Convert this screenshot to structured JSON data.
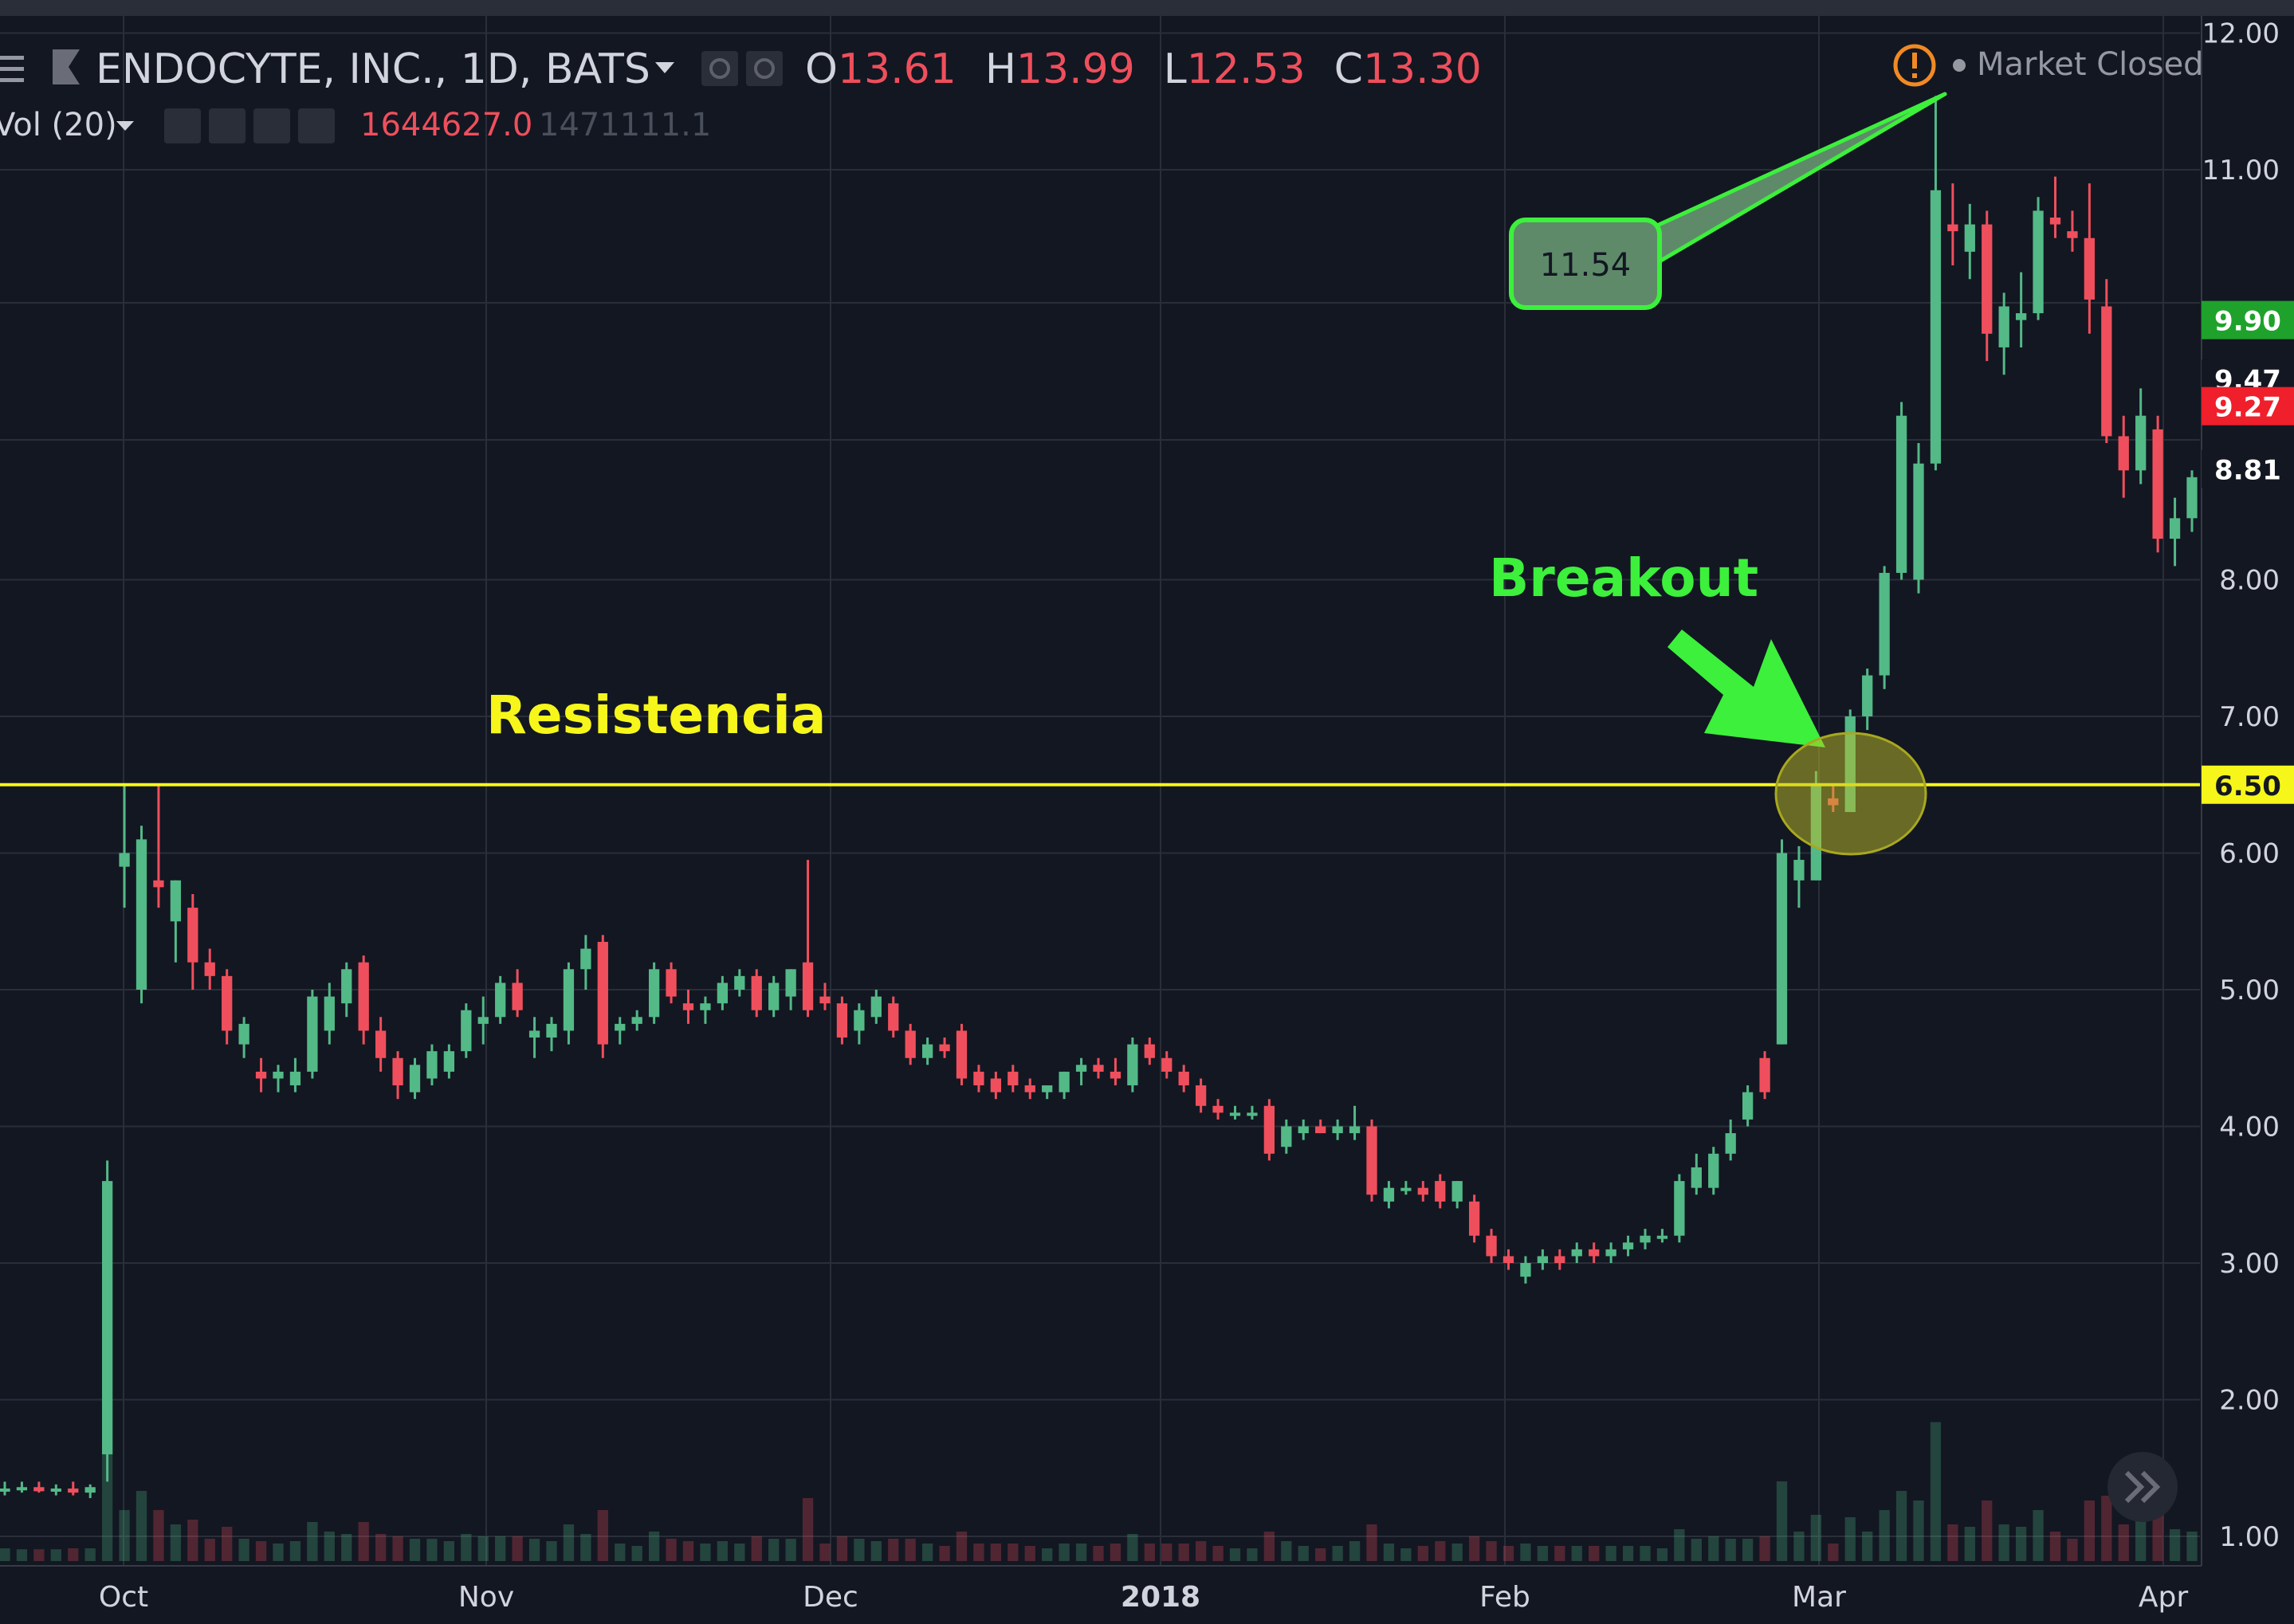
{
  "header": {
    "symbol": "ENDOCYTE, INC., 1D, BATS",
    "ohlc": {
      "o_label": "O",
      "o": "13.61",
      "h_label": "H",
      "h": "13.99",
      "l_label": "L",
      "l": "12.53",
      "c_label": "C",
      "c": "13.30"
    },
    "volume_label": "Vol (20)",
    "volume_value": "1644627.0",
    "volume_ma": "1471111.1",
    "status": "Market Closed"
  },
  "colors": {
    "up": "#53b987",
    "down": "#ef4f5c",
    "background": "#131722",
    "grid": "#2a2e39",
    "resistance": "#f6f61b",
    "annotation": "#3cf03c"
  },
  "annotations": {
    "resistance_text": "Resistencia",
    "breakout_text": "Breakout",
    "callout_value": "11.54"
  },
  "price_badges": [
    {
      "label": "9.90",
      "value": 9.9,
      "bg": "#1fa22b",
      "fg": "#ffffff"
    },
    {
      "label": "9.47",
      "value": 9.47,
      "bg": "#131722",
      "fg": "#ffffff"
    },
    {
      "label": "9.27",
      "value": 9.27,
      "bg": "#ef1f2b",
      "fg": "#ffffff"
    },
    {
      "label": "8.81",
      "value": 8.81,
      "bg": "#131722",
      "fg": "#ffffff"
    },
    {
      "label": "6.50",
      "value": 6.5,
      "bg": "#f6f61b",
      "fg": "#131722"
    }
  ],
  "chart_data": {
    "type": "candlestick",
    "y_ticks": [
      "1.00",
      "2.00",
      "3.00",
      "4.00",
      "5.00",
      "6.00",
      "7.00",
      "8.00",
      "11.00",
      "12.00"
    ],
    "ylim": [
      0.9,
      12.2
    ],
    "x_ticks": [
      "Oct",
      "Nov",
      "Dec",
      "2018",
      "Feb",
      "Mar",
      "Apr"
    ],
    "resistance_level": 6.5,
    "candles": [
      {
        "o": 1.35,
        "h": 1.4,
        "l": 1.3,
        "c": 1.35
      },
      {
        "o": 1.35,
        "h": 1.4,
        "l": 1.32,
        "c": 1.36
      },
      {
        "o": 1.36,
        "h": 1.4,
        "l": 1.32,
        "c": 1.33
      },
      {
        "o": 1.33,
        "h": 1.38,
        "l": 1.3,
        "c": 1.35
      },
      {
        "o": 1.35,
        "h": 1.4,
        "l": 1.3,
        "c": 1.32
      },
      {
        "o": 1.32,
        "h": 1.38,
        "l": 1.28,
        "c": 1.36
      },
      {
        "o": 1.6,
        "h": 3.75,
        "l": 1.4,
        "c": 3.6
      },
      {
        "o": 5.9,
        "h": 6.5,
        "l": 5.6,
        "c": 6.0
      },
      {
        "o": 5.0,
        "h": 6.2,
        "l": 4.9,
        "c": 6.1
      },
      {
        "o": 5.8,
        "h": 6.5,
        "l": 5.6,
        "c": 5.75
      },
      {
        "o": 5.5,
        "h": 5.8,
        "l": 5.2,
        "c": 5.8
      },
      {
        "o": 5.6,
        "h": 5.7,
        "l": 5.0,
        "c": 5.2
      },
      {
        "o": 5.2,
        "h": 5.3,
        "l": 5.0,
        "c": 5.1
      },
      {
        "o": 5.1,
        "h": 5.15,
        "l": 4.6,
        "c": 4.7
      },
      {
        "o": 4.6,
        "h": 4.8,
        "l": 4.5,
        "c": 4.75
      },
      {
        "o": 4.4,
        "h": 4.5,
        "l": 4.25,
        "c": 4.35
      },
      {
        "o": 4.35,
        "h": 4.45,
        "l": 4.25,
        "c": 4.4
      },
      {
        "o": 4.3,
        "h": 4.5,
        "l": 4.25,
        "c": 4.4
      },
      {
        "o": 4.4,
        "h": 5.0,
        "l": 4.35,
        "c": 4.95
      },
      {
        "o": 4.7,
        "h": 5.05,
        "l": 4.6,
        "c": 4.95
      },
      {
        "o": 4.9,
        "h": 5.2,
        "l": 4.8,
        "c": 5.15
      },
      {
        "o": 5.2,
        "h": 5.25,
        "l": 4.6,
        "c": 4.7
      },
      {
        "o": 4.7,
        "h": 4.8,
        "l": 4.4,
        "c": 4.5
      },
      {
        "o": 4.5,
        "h": 4.55,
        "l": 4.2,
        "c": 4.3
      },
      {
        "o": 4.25,
        "h": 4.5,
        "l": 4.2,
        "c": 4.45
      },
      {
        "o": 4.35,
        "h": 4.6,
        "l": 4.3,
        "c": 4.55
      },
      {
        "o": 4.4,
        "h": 4.6,
        "l": 4.35,
        "c": 4.55
      },
      {
        "o": 4.55,
        "h": 4.9,
        "l": 4.5,
        "c": 4.85
      },
      {
        "o": 4.75,
        "h": 4.95,
        "l": 4.6,
        "c": 4.8
      },
      {
        "o": 4.8,
        "h": 5.1,
        "l": 4.75,
        "c": 5.05
      },
      {
        "o": 5.05,
        "h": 5.15,
        "l": 4.8,
        "c": 4.85
      },
      {
        "o": 4.65,
        "h": 4.8,
        "l": 4.5,
        "c": 4.7
      },
      {
        "o": 4.65,
        "h": 4.8,
        "l": 4.55,
        "c": 4.75
      },
      {
        "o": 4.7,
        "h": 5.2,
        "l": 4.6,
        "c": 5.15
      },
      {
        "o": 5.15,
        "h": 5.4,
        "l": 5.0,
        "c": 5.3
      },
      {
        "o": 5.35,
        "h": 5.4,
        "l": 4.5,
        "c": 4.6
      },
      {
        "o": 4.7,
        "h": 4.8,
        "l": 4.6,
        "c": 4.75
      },
      {
        "o": 4.75,
        "h": 4.85,
        "l": 4.7,
        "c": 4.8
      },
      {
        "o": 4.8,
        "h": 5.2,
        "l": 4.75,
        "c": 5.15
      },
      {
        "o": 5.15,
        "h": 5.2,
        "l": 4.9,
        "c": 4.95
      },
      {
        "o": 4.9,
        "h": 5.0,
        "l": 4.75,
        "c": 4.85
      },
      {
        "o": 4.85,
        "h": 4.95,
        "l": 4.75,
        "c": 4.9
      },
      {
        "o": 4.9,
        "h": 5.1,
        "l": 4.85,
        "c": 5.05
      },
      {
        "o": 5.0,
        "h": 5.15,
        "l": 4.95,
        "c": 5.1
      },
      {
        "o": 5.1,
        "h": 5.15,
        "l": 4.8,
        "c": 4.85
      },
      {
        "o": 4.85,
        "h": 5.1,
        "l": 4.8,
        "c": 5.05
      },
      {
        "o": 4.95,
        "h": 5.15,
        "l": 4.85,
        "c": 5.15
      },
      {
        "o": 5.2,
        "h": 5.95,
        "l": 4.8,
        "c": 4.85
      },
      {
        "o": 4.95,
        "h": 5.05,
        "l": 4.85,
        "c": 4.9
      },
      {
        "o": 4.9,
        "h": 4.95,
        "l": 4.6,
        "c": 4.65
      },
      {
        "o": 4.7,
        "h": 4.9,
        "l": 4.6,
        "c": 4.85
      },
      {
        "o": 4.8,
        "h": 5.0,
        "l": 4.75,
        "c": 4.95
      },
      {
        "o": 4.9,
        "h": 4.95,
        "l": 4.65,
        "c": 4.7
      },
      {
        "o": 4.7,
        "h": 4.75,
        "l": 4.45,
        "c": 4.5
      },
      {
        "o": 4.5,
        "h": 4.65,
        "l": 4.45,
        "c": 4.6
      },
      {
        "o": 4.6,
        "h": 4.65,
        "l": 4.5,
        "c": 4.55
      },
      {
        "o": 4.7,
        "h": 4.75,
        "l": 4.3,
        "c": 4.35
      },
      {
        "o": 4.4,
        "h": 4.45,
        "l": 4.25,
        "c": 4.3
      },
      {
        "o": 4.35,
        "h": 4.4,
        "l": 4.2,
        "c": 4.25
      },
      {
        "o": 4.4,
        "h": 4.45,
        "l": 4.25,
        "c": 4.3
      },
      {
        "o": 4.3,
        "h": 4.35,
        "l": 4.2,
        "c": 4.25
      },
      {
        "o": 4.25,
        "h": 4.3,
        "l": 4.2,
        "c": 4.3
      },
      {
        "o": 4.25,
        "h": 4.4,
        "l": 4.2,
        "c": 4.4
      },
      {
        "o": 4.4,
        "h": 4.5,
        "l": 4.3,
        "c": 4.45
      },
      {
        "o": 4.45,
        "h": 4.5,
        "l": 4.35,
        "c": 4.4
      },
      {
        "o": 4.4,
        "h": 4.5,
        "l": 4.3,
        "c": 4.35
      },
      {
        "o": 4.3,
        "h": 4.65,
        "l": 4.25,
        "c": 4.6
      },
      {
        "o": 4.6,
        "h": 4.65,
        "l": 4.45,
        "c": 4.5
      },
      {
        "o": 4.5,
        "h": 4.55,
        "l": 4.35,
        "c": 4.4
      },
      {
        "o": 4.4,
        "h": 4.45,
        "l": 4.25,
        "c": 4.3
      },
      {
        "o": 4.3,
        "h": 4.35,
        "l": 4.1,
        "c": 4.15
      },
      {
        "o": 4.15,
        "h": 4.2,
        "l": 4.05,
        "c": 4.1
      },
      {
        "o": 4.1,
        "h": 4.15,
        "l": 4.05,
        "c": 4.1
      },
      {
        "o": 4.1,
        "h": 4.15,
        "l": 4.05,
        "c": 4.1
      },
      {
        "o": 4.15,
        "h": 4.2,
        "l": 3.75,
        "c": 3.8
      },
      {
        "o": 3.85,
        "h": 4.05,
        "l": 3.8,
        "c": 4.0
      },
      {
        "o": 3.95,
        "h": 4.05,
        "l": 3.9,
        "c": 4.0
      },
      {
        "o": 4.0,
        "h": 4.05,
        "l": 3.95,
        "c": 3.95
      },
      {
        "o": 3.95,
        "h": 4.05,
        "l": 3.9,
        "c": 4.0
      },
      {
        "o": 3.95,
        "h": 4.15,
        "l": 3.9,
        "c": 4.0
      },
      {
        "o": 4.0,
        "h": 4.05,
        "l": 3.45,
        "c": 3.5
      },
      {
        "o": 3.45,
        "h": 3.6,
        "l": 3.4,
        "c": 3.55
      },
      {
        "o": 3.55,
        "h": 3.6,
        "l": 3.5,
        "c": 3.55
      },
      {
        "o": 3.55,
        "h": 3.6,
        "l": 3.45,
        "c": 3.5
      },
      {
        "o": 3.6,
        "h": 3.65,
        "l": 3.4,
        "c": 3.45
      },
      {
        "o": 3.45,
        "h": 3.6,
        "l": 3.4,
        "c": 3.6
      },
      {
        "o": 3.45,
        "h": 3.5,
        "l": 3.15,
        "c": 3.2
      },
      {
        "o": 3.2,
        "h": 3.25,
        "l": 3.0,
        "c": 3.05
      },
      {
        "o": 3.05,
        "h": 3.1,
        "l": 2.95,
        "c": 3.0
      },
      {
        "o": 2.9,
        "h": 3.05,
        "l": 2.85,
        "c": 3.0
      },
      {
        "o": 3.0,
        "h": 3.1,
        "l": 2.95,
        "c": 3.05
      },
      {
        "o": 3.05,
        "h": 3.1,
        "l": 2.95,
        "c": 3.0
      },
      {
        "o": 3.05,
        "h": 3.15,
        "l": 3.0,
        "c": 3.1
      },
      {
        "o": 3.1,
        "h": 3.15,
        "l": 3.0,
        "c": 3.05
      },
      {
        "o": 3.05,
        "h": 3.15,
        "l": 3.0,
        "c": 3.1
      },
      {
        "o": 3.1,
        "h": 3.2,
        "l": 3.05,
        "c": 3.15
      },
      {
        "o": 3.15,
        "h": 3.25,
        "l": 3.1,
        "c": 3.2
      },
      {
        "o": 3.2,
        "h": 3.25,
        "l": 3.15,
        "c": 3.2
      },
      {
        "o": 3.2,
        "h": 3.65,
        "l": 3.15,
        "c": 3.6
      },
      {
        "o": 3.55,
        "h": 3.8,
        "l": 3.5,
        "c": 3.7
      },
      {
        "o": 3.55,
        "h": 3.85,
        "l": 3.5,
        "c": 3.8
      },
      {
        "o": 3.8,
        "h": 4.05,
        "l": 3.75,
        "c": 3.95
      },
      {
        "o": 4.05,
        "h": 4.3,
        "l": 4.0,
        "c": 4.25
      },
      {
        "o": 4.5,
        "h": 4.55,
        "l": 4.2,
        "c": 4.25
      },
      {
        "o": 4.6,
        "h": 6.1,
        "l": 4.6,
        "c": 6.0
      },
      {
        "o": 5.8,
        "h": 6.05,
        "l": 5.6,
        "c": 5.95
      },
      {
        "o": 5.8,
        "h": 6.6,
        "l": 5.8,
        "c": 6.5
      },
      {
        "o": 6.4,
        "h": 6.5,
        "l": 6.3,
        "c": 6.35
      },
      {
        "o": 6.3,
        "h": 7.05,
        "l": 6.3,
        "c": 7.0
      },
      {
        "o": 7.0,
        "h": 7.35,
        "l": 6.9,
        "c": 7.3
      },
      {
        "o": 7.3,
        "h": 8.1,
        "l": 7.2,
        "c": 8.05
      },
      {
        "o": 8.05,
        "h": 9.3,
        "l": 8.0,
        "c": 9.2
      },
      {
        "o": 8.0,
        "h": 9.0,
        "l": 7.9,
        "c": 8.85
      },
      {
        "o": 8.85,
        "h": 11.54,
        "l": 8.8,
        "c": 10.85
      },
      {
        "o": 10.6,
        "h": 10.9,
        "l": 10.3,
        "c": 10.55
      },
      {
        "o": 10.4,
        "h": 10.75,
        "l": 10.2,
        "c": 10.6
      },
      {
        "o": 10.6,
        "h": 10.7,
        "l": 9.6,
        "c": 9.8
      },
      {
        "o": 9.7,
        "h": 10.1,
        "l": 9.5,
        "c": 10.0
      },
      {
        "o": 9.9,
        "h": 10.25,
        "l": 9.7,
        "c": 9.95
      },
      {
        "o": 9.95,
        "h": 10.8,
        "l": 9.9,
        "c": 10.7
      },
      {
        "o": 10.65,
        "h": 10.95,
        "l": 10.5,
        "c": 10.6
      },
      {
        "o": 10.55,
        "h": 10.7,
        "l": 10.4,
        "c": 10.5
      },
      {
        "o": 10.5,
        "h": 10.9,
        "l": 9.8,
        "c": 10.05
      },
      {
        "o": 10.0,
        "h": 10.2,
        "l": 9.0,
        "c": 9.05
      },
      {
        "o": 9.05,
        "h": 9.2,
        "l": 8.6,
        "c": 8.8
      },
      {
        "o": 8.8,
        "h": 9.4,
        "l": 8.7,
        "c": 9.2
      },
      {
        "o": 9.1,
        "h": 9.2,
        "l": 8.2,
        "c": 8.3
      },
      {
        "o": 8.3,
        "h": 8.6,
        "l": 8.1,
        "c": 8.45
      },
      {
        "o": 8.45,
        "h": 8.8,
        "l": 8.35,
        "c": 8.75
      }
    ]
  }
}
